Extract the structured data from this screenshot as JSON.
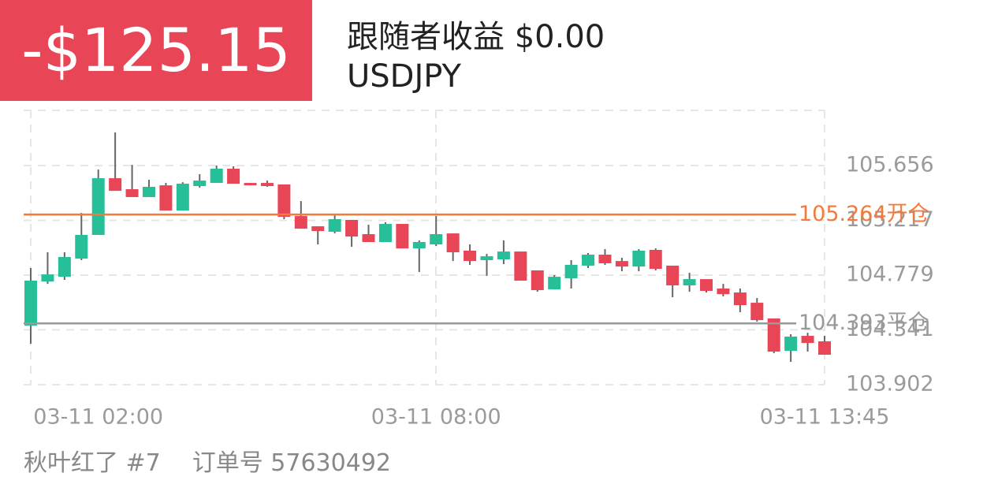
{
  "header": {
    "pnl": "-$125.15",
    "follower": "跟随者收益 $0.00",
    "symbol": "USDJPY"
  },
  "footer": {
    "trader": "秋叶红了 #7",
    "order": "订单号 57630492"
  },
  "chart_data": {
    "type": "candlestick",
    "categories": [
      null,
      null,
      null,
      null,
      "03-11 02:00",
      null,
      null,
      null,
      null,
      null,
      null,
      null,
      null,
      null,
      null,
      null,
      null,
      null,
      null,
      null,
      null,
      null,
      null,
      null,
      "03-11 08:00",
      null,
      null,
      null,
      null,
      null,
      null,
      null,
      null,
      null,
      null,
      null,
      null,
      null,
      null,
      null,
      null,
      null,
      null,
      null,
      null,
      null,
      null,
      "03-11 13:45"
    ],
    "open": [
      104.375,
      104.728,
      104.766,
      104.911,
      105.101,
      105.555,
      105.467,
      105.404,
      105.498,
      105.296,
      105.492,
      105.517,
      105.631,
      105.517,
      105.517,
      105.505,
      105.252,
      105.17,
      105.126,
      105.221,
      105.107,
      105.044,
      105.189,
      104.993,
      105.025,
      105.113,
      104.975,
      104.899,
      104.905,
      104.968,
      104.817,
      104.665,
      104.754,
      104.855,
      104.943,
      104.892,
      104.848,
      104.981,
      104.855,
      104.697,
      104.747,
      104.672,
      104.64,
      104.558,
      104.432,
      104.173,
      104.293,
      104.249
    ],
    "high": [
      104.836,
      104.962,
      104.962,
      105.277,
      105.624,
      105.921,
      105.662,
      105.542,
      105.517,
      105.523,
      105.587,
      105.656,
      105.65,
      105.517,
      105.536,
      105.505,
      105.372,
      105.17,
      105.258,
      105.221,
      105.183,
      105.202,
      105.189,
      105.057,
      105.252,
      105.113,
      105.025,
      104.949,
      105.057,
      104.968,
      104.817,
      104.779,
      104.899,
      104.956,
      104.987,
      104.918,
      104.987,
      104.993,
      104.855,
      104.798,
      104.747,
      104.709,
      104.672,
      104.596,
      104.432,
      104.306,
      104.318,
      104.293
    ],
    "low": [
      104.23,
      104.709,
      104.741,
      104.899,
      105.101,
      105.454,
      105.404,
      105.404,
      105.296,
      105.296,
      105.479,
      105.517,
      105.511,
      105.498,
      105.486,
      105.227,
      105.151,
      105.025,
      105.113,
      105.006,
      105.044,
      105.044,
      104.993,
      104.804,
      105.012,
      104.892,
      104.861,
      104.773,
      104.867,
      104.735,
      104.646,
      104.665,
      104.672,
      104.836,
      104.861,
      104.81,
      104.81,
      104.817,
      104.602,
      104.646,
      104.64,
      104.609,
      104.482,
      104.407,
      104.154,
      104.085,
      104.167,
      104.142
    ],
    "close": [
      104.735,
      104.785,
      104.924,
      105.101,
      105.555,
      105.454,
      105.404,
      105.486,
      105.296,
      105.511,
      105.536,
      105.631,
      105.511,
      105.498,
      105.492,
      105.246,
      105.151,
      105.132,
      105.227,
      105.088,
      105.044,
      105.189,
      104.993,
      105.044,
      105.107,
      104.962,
      104.892,
      104.93,
      104.968,
      104.735,
      104.659,
      104.766,
      104.861,
      104.943,
      104.874,
      104.848,
      104.975,
      104.829,
      104.697,
      104.747,
      104.653,
      104.627,
      104.539,
      104.419,
      104.167,
      104.287,
      104.236,
      104.142
    ],
    "up_color": "#26bf98",
    "down_color": "#e84557",
    "ylim": [
      103.902,
      106.098
    ],
    "yticks": [
      103.902,
      104.341,
      104.779,
      105.217,
      105.656
    ],
    "grid": true,
    "reference_lines": [
      {
        "value": 105.264,
        "label": "开仓",
        "color": "#f47a3c"
      },
      {
        "value": 104.393,
        "label": "平仓",
        "color": "#999999"
      }
    ]
  }
}
